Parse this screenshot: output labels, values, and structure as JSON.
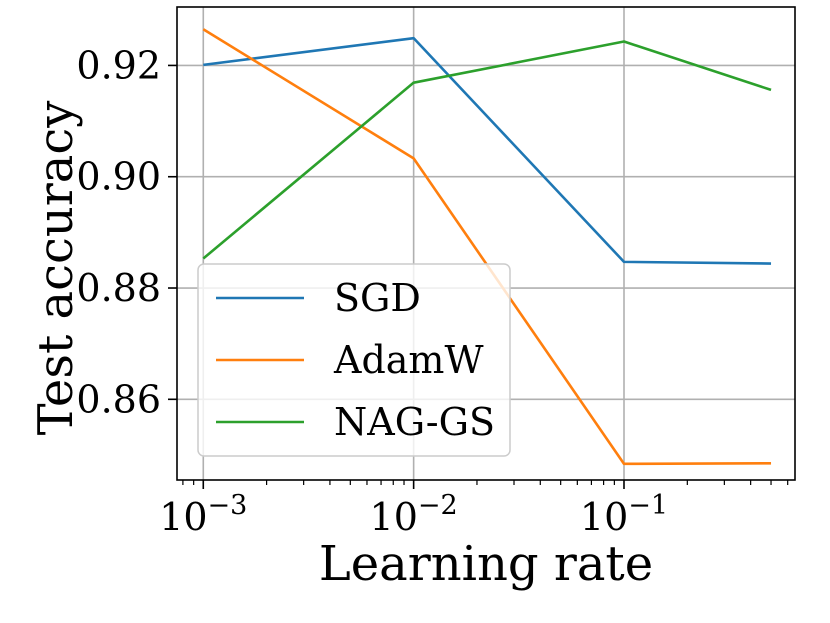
{
  "chart_data": {
    "type": "line",
    "title": "",
    "xlabel": "Learning rate",
    "ylabel": "Test accuracy",
    "xscale": "log",
    "x": [
      0.001,
      0.01,
      0.1,
      0.5
    ],
    "xlim": [
      0.00075,
      0.65
    ],
    "ylim": [
      0.8455,
      0.9305
    ],
    "xticks": [
      {
        "value": 0.001,
        "base": "10",
        "exp": "−3"
      },
      {
        "value": 0.01,
        "base": "10",
        "exp": "−2"
      },
      {
        "value": 0.1,
        "base": "10",
        "exp": "−1"
      }
    ],
    "yticks": [
      {
        "value": 0.86,
        "label": "0.86"
      },
      {
        "value": 0.88,
        "label": "0.88"
      },
      {
        "value": 0.9,
        "label": "0.90"
      },
      {
        "value": 0.92,
        "label": "0.92"
      }
    ],
    "grid": true,
    "legend_position": "lower-left",
    "series": [
      {
        "name": "SGD",
        "color": "#1f77b4",
        "values": [
          0.9201,
          0.9249,
          0.8847,
          0.8844
        ]
      },
      {
        "name": "AdamW",
        "color": "#ff7f0e",
        "values": [
          0.9265,
          0.9033,
          0.8484,
          0.8485
        ]
      },
      {
        "name": "NAG-GS",
        "color": "#2ca02c",
        "values": [
          0.8853,
          0.9169,
          0.9243,
          0.9156
        ]
      }
    ]
  }
}
